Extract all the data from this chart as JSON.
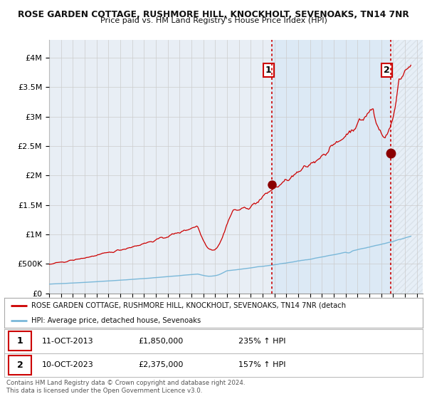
{
  "title1": "ROSE GARDEN COTTAGE, RUSHMORE HILL, KNOCKHOLT, SEVENOAKS, TN14 7NR",
  "title2": "Price paid vs. HM Land Registry's House Price Index (HPI)",
  "ylabel_ticks": [
    "£0",
    "£500K",
    "£1M",
    "£1.5M",
    "£2M",
    "£2.5M",
    "£3M",
    "£3.5M",
    "£4M"
  ],
  "ytick_values": [
    0,
    500000,
    1000000,
    1500000,
    2000000,
    2500000,
    3000000,
    3500000,
    4000000
  ],
  "ylim": [
    0,
    4300000
  ],
  "xlim_start": 1995.0,
  "xlim_end": 2026.5,
  "hpi_color": "#7ab8d9",
  "price_color": "#cc0000",
  "point1_x": 2013.79,
  "point1_y": 1850000,
  "point2_x": 2023.79,
  "point2_y": 2375000,
  "point1_label": "11-OCT-2013",
  "point1_price": "£1,850,000",
  "point1_hpi": "235% ↑ HPI",
  "point2_label": "10-OCT-2023",
  "point2_price": "£2,375,000",
  "point2_hpi": "157% ↑ HPI",
  "legend_line1": "ROSE GARDEN COTTAGE, RUSHMORE HILL, KNOCKHOLT, SEVENOAKS, TN14 7NR (detach",
  "legend_line2": "HPI: Average price, detached house, Sevenoaks",
  "footer": "Contains HM Land Registry data © Crown copyright and database right 2024.\nThis data is licensed under the Open Government Licence v3.0.",
  "bg_color": "#ffffff",
  "plot_bg_color": "#dce9f5",
  "plot_bg_left": "#f0f0f0",
  "grid_color": "#bbbbbb"
}
